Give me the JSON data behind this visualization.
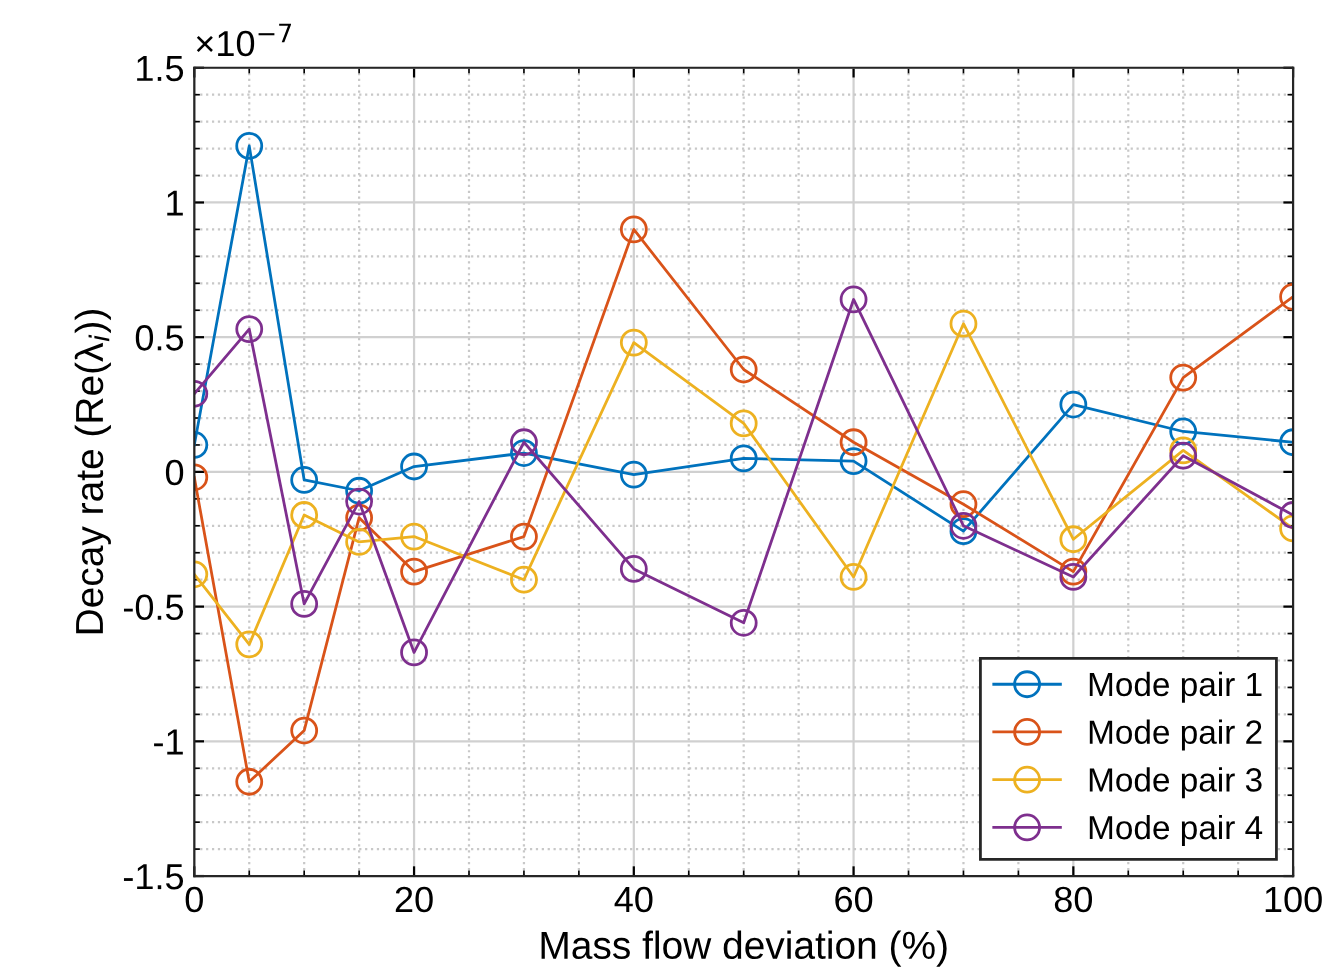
{
  "chart_data": {
    "type": "line",
    "xlabel": "Mass flow deviation (%)",
    "ylabel": "Decay rate (Re(λ$_{i}$))",
    "annotations": [
      "×10$^{−7}$"
    ],
    "x": [
      0,
      5,
      10,
      15,
      20,
      30,
      40,
      50,
      60,
      70,
      80,
      90,
      100
    ],
    "series": [
      {
        "name": "Mode pair 1",
        "color": "#0072bd",
        "values": [
          0.1,
          1.21,
          -0.03,
          -0.07,
          0.02,
          0.07,
          -0.01,
          0.05,
          0.04,
          -0.22,
          0.25,
          0.15,
          0.11
        ]
      },
      {
        "name": "Mode pair 2",
        "color": "#d95319",
        "values": [
          -0.02,
          -1.15,
          -0.96,
          -0.17,
          -0.37,
          -0.24,
          0.9,
          0.38,
          0.11,
          -0.12,
          -0.37,
          0.35,
          0.65
        ]
      },
      {
        "name": "Mode pair 3",
        "color": "#edb120",
        "values": [
          -0.38,
          -0.64,
          -0.16,
          -0.26,
          -0.24,
          -0.4,
          0.48,
          0.18,
          -0.39,
          0.55,
          -0.25,
          0.08,
          -0.21
        ]
      },
      {
        "name": "Mode pair 4",
        "color": "#7e2f8e",
        "values": [
          0.29,
          0.53,
          -0.49,
          -0.11,
          -0.67,
          0.11,
          -0.36,
          -0.56,
          0.64,
          -0.2,
          -0.39,
          0.06,
          -0.16
        ]
      }
    ],
    "xlim": [
      0,
      100
    ],
    "xticks": [
      0,
      20,
      40,
      60,
      80,
      100
    ],
    "ylim": [
      -1.5,
      1.5
    ],
    "yticks": [
      -1.5,
      -1,
      -0.5,
      0,
      0.5,
      1,
      1.5
    ],
    "grid": true,
    "legend": "bottom right",
    "marker": "circle",
    "line_style": "solid"
  }
}
